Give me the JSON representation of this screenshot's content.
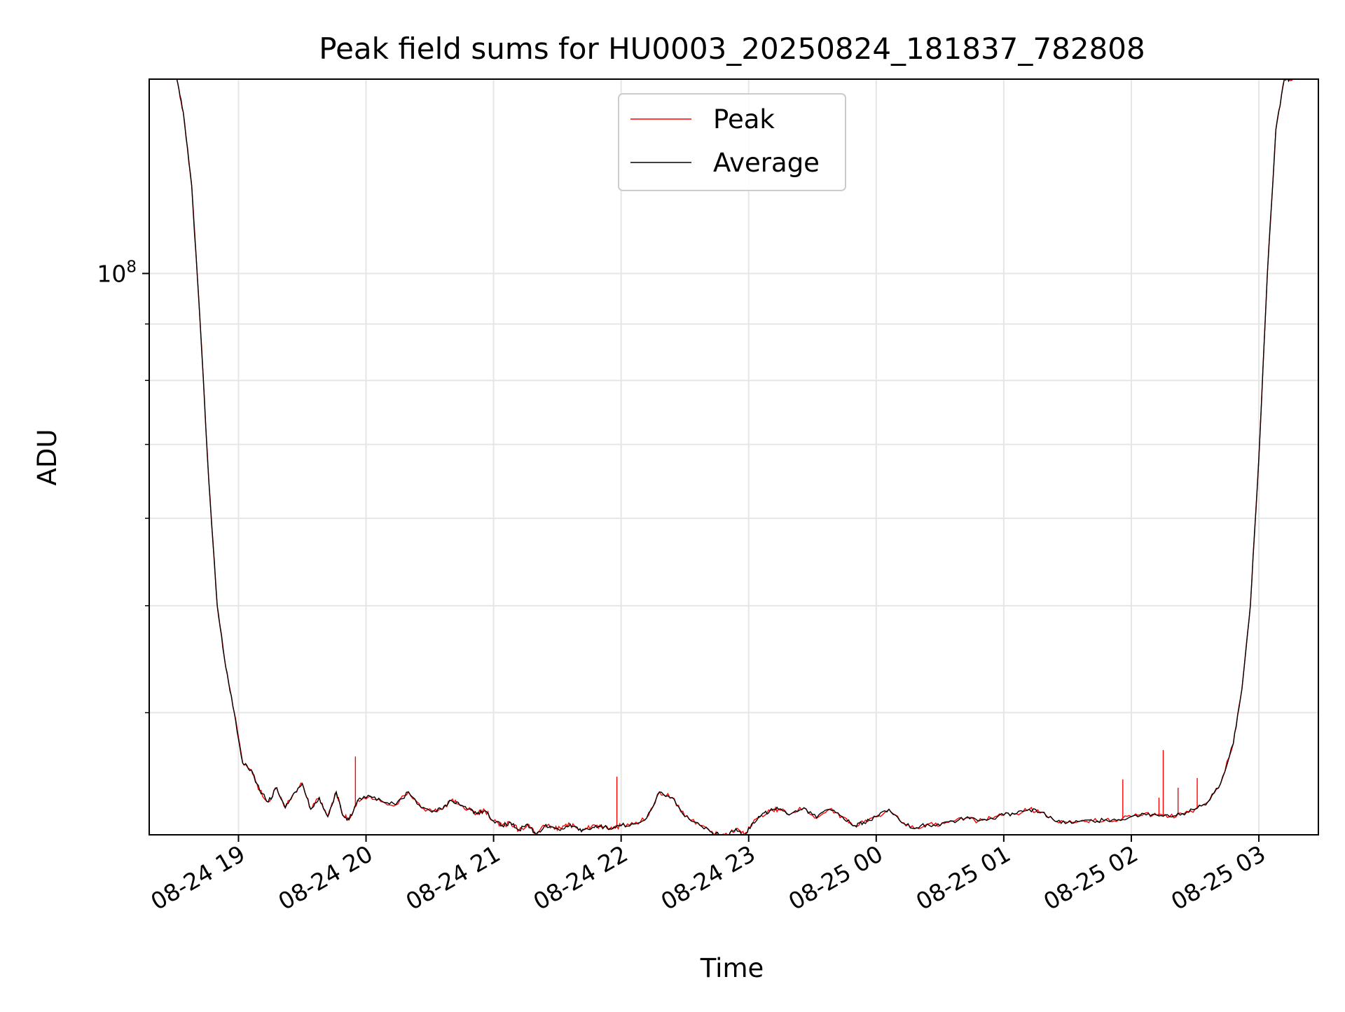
{
  "chart_data": {
    "type": "line",
    "title": "Peak field sums for HU0003_20250824_181837_782808",
    "xlabel": "Time",
    "ylabel": "ADU",
    "y_scale": "log",
    "ylim": [
      31000000,
      150000000
    ],
    "y_major_ticks": [
      {
        "value": 100000000,
        "base": "10",
        "exp": "8"
      }
    ],
    "y_minor_ticks": [
      40000000,
      50000000,
      60000000,
      70000000,
      80000000,
      90000000,
      200000000
    ],
    "xlim": [
      "2025-08-24 18:18",
      "2025-08-25 03:28"
    ],
    "x_ticks": [
      {
        "value": "2025-08-24 19:00",
        "label": "08-24 19"
      },
      {
        "value": "2025-08-24 20:00",
        "label": "08-24 20"
      },
      {
        "value": "2025-08-24 21:00",
        "label": "08-24 21"
      },
      {
        "value": "2025-08-24 22:00",
        "label": "08-24 22"
      },
      {
        "value": "2025-08-24 23:00",
        "label": "08-24 23"
      },
      {
        "value": "2025-08-25 00:00",
        "label": "08-25 00"
      },
      {
        "value": "2025-08-25 01:00",
        "label": "08-25 01"
      },
      {
        "value": "2025-08-25 02:00",
        "label": "08-25 02"
      },
      {
        "value": "2025-08-25 03:00",
        "label": "08-25 03"
      }
    ],
    "grid": true,
    "legend": {
      "placement": "upper center",
      "entries": [
        "Peak",
        "Average"
      ]
    },
    "colors": {
      "Peak": "#ff0000",
      "Average": "#000000",
      "grid": "#e6e6e6"
    },
    "x": [
      "2025-08-24 18:31",
      "2025-08-24 18:34",
      "2025-08-24 18:38",
      "2025-08-24 18:42",
      "2025-08-24 18:46",
      "2025-08-24 18:50",
      "2025-08-24 18:54",
      "2025-08-24 18:58",
      "2025-08-24 19:02",
      "2025-08-24 19:06",
      "2025-08-24 19:10",
      "2025-08-24 19:14",
      "2025-08-24 19:18",
      "2025-08-24 19:22",
      "2025-08-24 19:26",
      "2025-08-24 19:30",
      "2025-08-24 19:34",
      "2025-08-24 19:38",
      "2025-08-24 19:42",
      "2025-08-24 19:46",
      "2025-08-24 19:49",
      "2025-08-24 19:52",
      "2025-08-24 19:56",
      "2025-08-24 20:02",
      "2025-08-24 20:08",
      "2025-08-24 20:14",
      "2025-08-24 20:20",
      "2025-08-24 20:26",
      "2025-08-24 20:32",
      "2025-08-24 20:36",
      "2025-08-24 20:40",
      "2025-08-24 20:44",
      "2025-08-24 20:48",
      "2025-08-24 20:52",
      "2025-08-24 20:56",
      "2025-08-24 21:00",
      "2025-08-24 21:04",
      "2025-08-24 21:08",
      "2025-08-24 21:12",
      "2025-08-24 21:16",
      "2025-08-24 21:20",
      "2025-08-24 21:24",
      "2025-08-24 21:28",
      "2025-08-24 21:32",
      "2025-08-24 21:36",
      "2025-08-24 21:40",
      "2025-08-24 21:44",
      "2025-08-24 21:48",
      "2025-08-24 21:52",
      "2025-08-24 21:56",
      "2025-08-24 22:00",
      "2025-08-24 22:06",
      "2025-08-24 22:12",
      "2025-08-24 22:18",
      "2025-08-24 22:24",
      "2025-08-24 22:30",
      "2025-08-24 22:36",
      "2025-08-24 22:42",
      "2025-08-24 22:46",
      "2025-08-24 22:50",
      "2025-08-24 22:54",
      "2025-08-24 22:58",
      "2025-08-24 23:02",
      "2025-08-24 23:06",
      "2025-08-24 23:10",
      "2025-08-24 23:14",
      "2025-08-24 23:20",
      "2025-08-24 23:26",
      "2025-08-24 23:32",
      "2025-08-24 23:38",
      "2025-08-24 23:44",
      "2025-08-24 23:50",
      "2025-08-24 23:54",
      "2025-08-25 00:00",
      "2025-08-25 00:06",
      "2025-08-25 00:12",
      "2025-08-25 00:18",
      "2025-08-25 00:24",
      "2025-08-25 00:30",
      "2025-08-25 00:36",
      "2025-08-25 00:42",
      "2025-08-25 00:48",
      "2025-08-25 00:54",
      "2025-08-25 01:00",
      "2025-08-25 01:06",
      "2025-08-25 01:12",
      "2025-08-25 01:18",
      "2025-08-25 01:24",
      "2025-08-25 01:30",
      "2025-08-25 01:36",
      "2025-08-25 01:42",
      "2025-08-25 01:48",
      "2025-08-25 01:54",
      "2025-08-25 02:00",
      "2025-08-25 02:06",
      "2025-08-25 02:12",
      "2025-08-25 02:18",
      "2025-08-25 02:24",
      "2025-08-25 02:30",
      "2025-08-25 02:36",
      "2025-08-25 02:42",
      "2025-08-25 02:48",
      "2025-08-25 02:52",
      "2025-08-25 02:56",
      "2025-08-25 03:00",
      "2025-08-25 03:04",
      "2025-08-25 03:08",
      "2025-08-25 03:12",
      "2025-08-25 03:16"
    ],
    "series": [
      {
        "name": "Average",
        "values": [
          150000000,
          140000000,
          120000000,
          90000000,
          65000000,
          50000000,
          44000000,
          40000000,
          36000000,
          35500000,
          34000000,
          33200000,
          34200000,
          32800000,
          33800000,
          34500000,
          32700000,
          33500000,
          32200000,
          33900000,
          32300000,
          32000000,
          33300000,
          33600000,
          33200000,
          33000000,
          33900000,
          32800000,
          32600000,
          32700000,
          33300000,
          33000000,
          32700000,
          32400000,
          32600000,
          31900000,
          31600000,
          31800000,
          31300000,
          31700000,
          31000000,
          31600000,
          31500000,
          31400000,
          31700000,
          31300000,
          31400000,
          31600000,
          31500000,
          31400000,
          31600000,
          31700000,
          32100000,
          33900000,
          33500000,
          32200000,
          31800000,
          31200000,
          31000000,
          31000000,
          31400000,
          31000000,
          31800000,
          32300000,
          32600000,
          32700000,
          32400000,
          32800000,
          32100000,
          32700000,
          32200000,
          31600000,
          31800000,
          32200000,
          32700000,
          31800000,
          31400000,
          31700000,
          31600000,
          31900000,
          32100000,
          31900000,
          32100000,
          32300000,
          32400000,
          32700000,
          32500000,
          31900000,
          31800000,
          31900000,
          31900000,
          32000000,
          32000000,
          32200000,
          32400000,
          32300000,
          32200000,
          32400000,
          32700000,
          33200000,
          34500000,
          37500000,
          42000000,
          50000000,
          68000000,
          100000000,
          135000000,
          150000000,
          150000000
        ]
      },
      {
        "name": "Peak",
        "values": [
          150000000,
          140000000,
          120000000,
          90000000,
          65000000,
          50000000,
          44000000,
          40000000,
          36000000,
          35500000,
          34000000,
          33200000,
          34200000,
          32800000,
          33800000,
          34500000,
          32700000,
          33500000,
          32200000,
          33900000,
          32300000,
          32000000,
          33300000,
          33600000,
          33200000,
          33000000,
          33900000,
          32800000,
          32600000,
          32700000,
          33300000,
          33000000,
          32700000,
          32400000,
          32600000,
          31900000,
          31600000,
          31800000,
          31300000,
          31700000,
          31000000,
          31600000,
          31500000,
          31400000,
          31700000,
          31300000,
          31400000,
          31600000,
          31500000,
          31400000,
          31600000,
          31700000,
          32100000,
          33900000,
          33500000,
          32200000,
          31800000,
          31200000,
          31000000,
          31000000,
          31400000,
          31000000,
          31800000,
          32300000,
          32600000,
          32700000,
          32400000,
          32800000,
          32100000,
          32700000,
          32200000,
          31600000,
          31800000,
          32200000,
          32700000,
          31800000,
          31400000,
          31700000,
          31600000,
          31900000,
          32100000,
          31900000,
          32100000,
          32300000,
          32400000,
          32700000,
          32500000,
          31900000,
          31800000,
          31900000,
          31900000,
          32000000,
          32000000,
          32200000,
          32400000,
          32300000,
          32200000,
          32400000,
          32700000,
          33200000,
          34500000,
          37500000,
          42000000,
          50000000,
          68000000,
          100000000,
          135000000,
          150000000,
          150000000
        ],
        "spikes": [
          {
            "x": "2025-08-24 19:55",
            "value": 36500000
          },
          {
            "x": "2025-08-24 21:58",
            "value": 35000000
          },
          {
            "x": "2025-08-25 01:56",
            "value": 34800000
          },
          {
            "x": "2025-08-25 02:13",
            "value": 33500000
          },
          {
            "x": "2025-08-25 02:15",
            "value": 37000000
          },
          {
            "x": "2025-08-25 02:22",
            "value": 34200000
          },
          {
            "x": "2025-08-25 02:31",
            "value": 34900000
          }
        ]
      }
    ]
  }
}
